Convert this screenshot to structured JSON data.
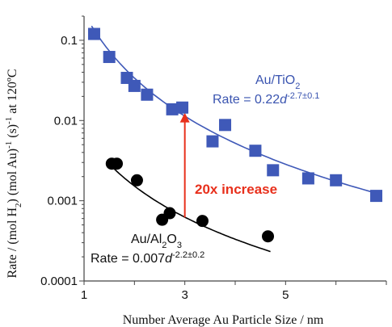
{
  "chart_data": {
    "type": "scatter",
    "title": "",
    "xlabel": "Number Average Au Particle Size / nm",
    "ylabel": {
      "prefix": "Rate / (mol H",
      "sub1": "2",
      "mid": ") (mol Au)",
      "sup1": "-1",
      "mid2": " (s)",
      "sup2": "-1",
      "suffix": " at 120ºC"
    },
    "xlim": [
      1,
      7
    ],
    "ylim": [
      0.0001,
      0.2
    ],
    "yscale": "log",
    "xticks": [
      {
        "value": 1,
        "label": "1"
      },
      {
        "value": 3,
        "label": "3"
      },
      {
        "value": 5,
        "label": "5"
      }
    ],
    "yticks": [
      {
        "value": 0.1,
        "label": "0.1"
      },
      {
        "value": 0.01,
        "label": "0.01"
      },
      {
        "value": 0.001,
        "label": "0.001"
      },
      {
        "value": 0.0001,
        "label": "0.0001"
      }
    ],
    "grid": false,
    "series": [
      {
        "name": "Au/TiO2",
        "marker": "square",
        "color": "#3f59b8",
        "x": [
          1.2,
          1.5,
          1.85,
          2.0,
          2.25,
          2.75,
          2.95,
          3.55,
          3.8,
          4.4,
          4.75,
          5.45,
          6.0,
          6.8
        ],
        "y": [
          0.12,
          0.062,
          0.034,
          0.027,
          0.021,
          0.0138,
          0.0145,
          0.0055,
          0.0088,
          0.0042,
          0.0024,
          0.0019,
          0.0018,
          0.00115
        ]
      },
      {
        "name": "Au/Al2O3",
        "marker": "circle",
        "color": "#000000",
        "x": [
          1.55,
          1.65,
          2.05,
          2.55,
          2.7,
          3.35,
          4.65
        ],
        "y": [
          0.0029,
          0.0029,
          0.0018,
          0.00058,
          0.0007,
          0.00056,
          0.00036
        ]
      }
    ],
    "fits": [
      {
        "series": "Au/TiO2",
        "color": "#3f59b8",
        "a": 0.22,
        "b": -2.7,
        "x_range": [
          1.15,
          6.85
        ]
      },
      {
        "series": "Au/Al2O3",
        "color": "#000000",
        "a": 0.007,
        "b": -2.2,
        "x_range": [
          1.55,
          4.7
        ]
      }
    ],
    "annotations": {
      "tio2_name": {
        "main": "Au/TiO",
        "sub": "2"
      },
      "tio2_eq": {
        "main": "Rate = 0.22",
        "var": "d",
        "sup": "-2.7±0.1"
      },
      "al2o3_name": {
        "main1": "Au/Al",
        "sub1": "2",
        "main2": "O",
        "sub2": "3"
      },
      "al2o3_eq": {
        "main": "Rate = 0.007",
        "var": "d",
        "sup": "-2.2±0.2"
      },
      "increase": "20x increase",
      "arrow": {
        "x": 3.0,
        "from": 0.00062,
        "to": 0.0125,
        "color": "#e8301c"
      }
    }
  }
}
